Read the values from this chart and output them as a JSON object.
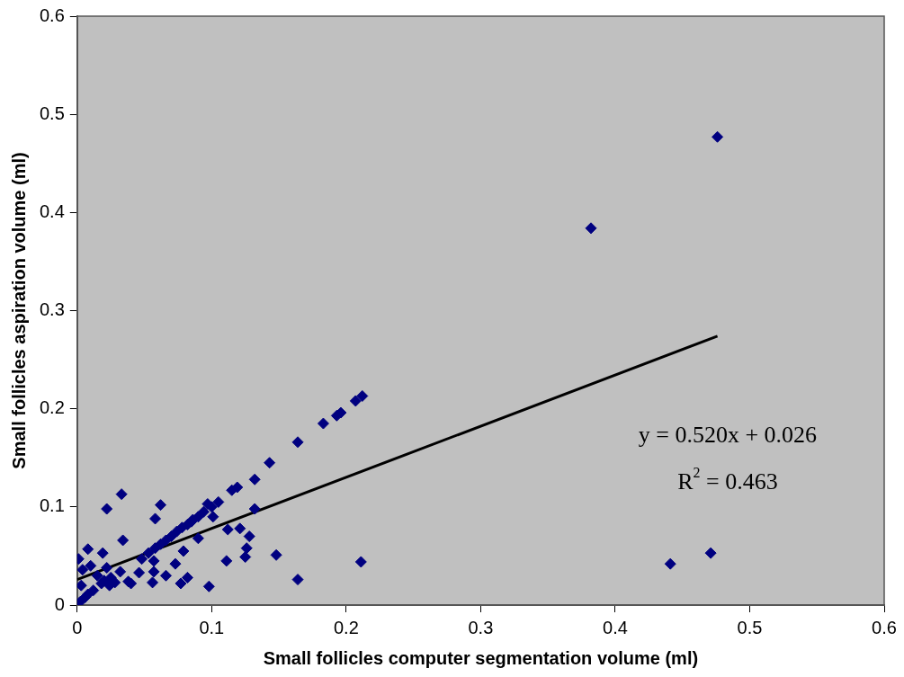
{
  "chart_data": {
    "type": "scatter",
    "xlabel": "Small follicles computer segmentation volume (ml)",
    "ylabel": "Small follicles aspiration volume (ml)",
    "xlim": [
      0,
      0.6
    ],
    "xticks": [
      0,
      0.1,
      0.2,
      0.3,
      0.4,
      0.5,
      0.6
    ],
    "ylim": [
      0,
      0.6
    ],
    "yticks": [
      0,
      0.1,
      0.2,
      0.3,
      0.4,
      0.5,
      0.6
    ],
    "grid": false,
    "legend": false,
    "marker": "diamond",
    "annotations": [
      "y = 0.520x + 0.026",
      "R$^{2}$ = 0.463"
    ],
    "series": [
      {
        "color": "#000080",
        "x": [
          0.476,
          0.382,
          0.441,
          0.471,
          0.211,
          0.164,
          0.148,
          0.212,
          0.207,
          0.196,
          0.193,
          0.183,
          0.164,
          0.143,
          0.132,
          0.119,
          0.115,
          0.105,
          0.1,
          0.097,
          0.094,
          0.09,
          0.086,
          0.082,
          0.078,
          0.074,
          0.07,
          0.066,
          0.062,
          0.058,
          0.053,
          0.048,
          0.022,
          0.033,
          0.062,
          0.058,
          0.034,
          0.132,
          0.101,
          0.09,
          0.112,
          0.121,
          0.128,
          0.126,
          0.125,
          0.111,
          0.098,
          0.082,
          0.077,
          0.073,
          0.066,
          0.056,
          0.057,
          0.057,
          0.046,
          0.04,
          0.038,
          0.032,
          0.019,
          0.008,
          0.001,
          0.004,
          0.01,
          0.003,
          0.015,
          0.02,
          0.025,
          0.028,
          0.022,
          0.012,
          0.006,
          0.002,
          0.008,
          0.018,
          0.024,
          0.079,
          0.085
        ],
        "values": [
          0.477,
          0.384,
          0.042,
          0.053,
          0.044,
          0.026,
          0.051,
          0.213,
          0.208,
          0.196,
          0.193,
          0.185,
          0.166,
          0.145,
          0.128,
          0.12,
          0.117,
          0.105,
          0.1,
          0.103,
          0.095,
          0.09,
          0.087,
          0.082,
          0.079,
          0.075,
          0.07,
          0.066,
          0.062,
          0.058,
          0.053,
          0.047,
          0.098,
          0.113,
          0.102,
          0.088,
          0.066,
          0.098,
          0.09,
          0.068,
          0.077,
          0.078,
          0.07,
          0.058,
          0.049,
          0.045,
          0.019,
          0.028,
          0.022,
          0.042,
          0.03,
          0.023,
          0.034,
          0.045,
          0.033,
          0.022,
          0.024,
          0.034,
          0.053,
          0.057,
          0.047,
          0.036,
          0.04,
          0.02,
          0.03,
          0.025,
          0.028,
          0.023,
          0.038,
          0.015,
          0.008,
          0.003,
          0.011,
          0.022,
          0.02,
          0.055,
          0.085
        ]
      },
      {
        "type": "line",
        "color": "#000000",
        "marker": "none",
        "line_style": "solid",
        "x": [
          0,
          0.476
        ],
        "values": [
          0.026,
          0.274
        ]
      }
    ]
  }
}
